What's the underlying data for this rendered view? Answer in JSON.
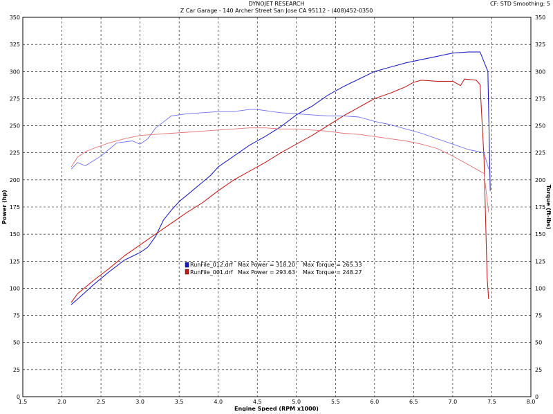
{
  "header": {
    "title": "DYNOJET RESEARCH",
    "subtitle": "Z Car Garage - 140 Archer Street San Jose CA 95112 - (408)452-0350",
    "settings": "CF: STD  Smoothing: 5"
  },
  "chart_data": {
    "type": "line",
    "title": "DYNOJET RESEARCH",
    "subtitle": "Z Car Garage - 140 Archer Street San Jose CA 95112 - (408)452-0350",
    "xlabel": "Engine Speed (RPM x1000)",
    "ylabel_left": "Power (hp)",
    "ylabel_right": "Torque (ft-lbs)",
    "xlim": [
      1.5,
      8.0
    ],
    "ylim": [
      0,
      350
    ],
    "x_ticks": [
      "1.5",
      "2.0",
      "2.5",
      "3.0",
      "3.5",
      "4.0",
      "4.5",
      "5.0",
      "5.5",
      "6.0",
      "6.5",
      "7.0",
      "7.5",
      "8.0"
    ],
    "y_ticks": [
      "0",
      "25",
      "50",
      "75",
      "100",
      "125",
      "150",
      "175",
      "200",
      "225",
      "250",
      "275",
      "300",
      "325",
      "350"
    ],
    "grid": true,
    "legend": [
      {
        "color_box": "#1a1acc",
        "file": "RunFile_012.drf",
        "max_power": "Max Power = 318.20",
        "max_torque": "Max Torque = 265.33"
      },
      {
        "color_box": "#cc1a1a",
        "file": "RunFile_001.drf",
        "max_power": "Max Power = 293.63",
        "max_torque": "Max Torque = 248.27"
      }
    ],
    "series": [
      {
        "name": "RunFile_012.drf Power",
        "color": "#2020c0",
        "stroke": 1.1,
        "x": [
          2.12,
          2.2,
          2.4,
          2.6,
          2.8,
          3.0,
          3.1,
          3.2,
          3.3,
          3.4,
          3.5,
          3.6,
          3.7,
          3.8,
          3.9,
          4.0,
          4.2,
          4.4,
          4.6,
          4.8,
          5.0,
          5.2,
          5.4,
          5.6,
          5.8,
          6.0,
          6.2,
          6.4,
          6.6,
          6.8,
          7.0,
          7.2,
          7.35,
          7.45,
          7.48
        ],
        "y": [
          85,
          90,
          103,
          115,
          126,
          133,
          138,
          148,
          163,
          172,
          180,
          186,
          192,
          198,
          204,
          212,
          222,
          232,
          240,
          249,
          260,
          268,
          278,
          286,
          293,
          300,
          304,
          308,
          311,
          314,
          317,
          318,
          318,
          300,
          190
        ]
      },
      {
        "name": "RunFile_001.drf Power",
        "color": "#c02020",
        "stroke": 1.1,
        "x": [
          2.12,
          2.2,
          2.4,
          2.6,
          2.8,
          3.0,
          3.2,
          3.4,
          3.6,
          3.8,
          4.0,
          4.2,
          4.4,
          4.6,
          4.8,
          5.0,
          5.2,
          5.4,
          5.6,
          5.8,
          6.0,
          6.2,
          6.4,
          6.5,
          6.6,
          6.8,
          7.0,
          7.1,
          7.15,
          7.3,
          7.35,
          7.4,
          7.44,
          7.46
        ],
        "y": [
          87,
          95,
          107,
          118,
          130,
          140,
          150,
          160,
          170,
          179,
          190,
          200,
          208,
          216,
          225,
          233,
          241,
          250,
          259,
          267,
          275,
          280,
          286,
          290,
          292,
          291,
          291,
          287,
          293,
          292,
          288,
          220,
          110,
          90
        ]
      },
      {
        "name": "RunFile_012.drf Torque",
        "color": "#7070e8",
        "stroke": 0.9,
        "x": [
          2.12,
          2.2,
          2.3,
          2.5,
          2.7,
          2.9,
          3.0,
          3.1,
          3.2,
          3.4,
          3.6,
          3.8,
          4.0,
          4.2,
          4.4,
          4.5,
          4.6,
          4.8,
          5.0,
          5.2,
          5.4,
          5.6,
          5.8,
          6.0,
          6.2,
          6.4,
          6.6,
          6.8,
          7.0,
          7.2,
          7.4,
          7.46
        ],
        "y": [
          210,
          216,
          213,
          222,
          234,
          236,
          233,
          238,
          248,
          259,
          261,
          262,
          263,
          263,
          265,
          265,
          264,
          262,
          261,
          260,
          259,
          259,
          258,
          254,
          251,
          247,
          243,
          238,
          233,
          228,
          225,
          210
        ]
      },
      {
        "name": "RunFile_001.drf Torque",
        "color": "#e07070",
        "stroke": 0.9,
        "x": [
          2.12,
          2.2,
          2.3,
          2.4,
          2.6,
          2.8,
          3.0,
          3.2,
          3.4,
          3.6,
          3.8,
          4.0,
          4.2,
          4.4,
          4.6,
          4.8,
          5.0,
          5.2,
          5.4,
          5.6,
          5.8,
          6.0,
          6.2,
          6.4,
          6.6,
          6.8,
          7.0,
          7.2,
          7.3,
          7.4,
          7.46
        ],
        "y": [
          212,
          221,
          226,
          229,
          234,
          238,
          241,
          242,
          243,
          244,
          245,
          246,
          247,
          248,
          248,
          247,
          247,
          246,
          245,
          243,
          242,
          240,
          238,
          236,
          233,
          229,
          222,
          214,
          210,
          206,
          170
        ]
      }
    ]
  }
}
